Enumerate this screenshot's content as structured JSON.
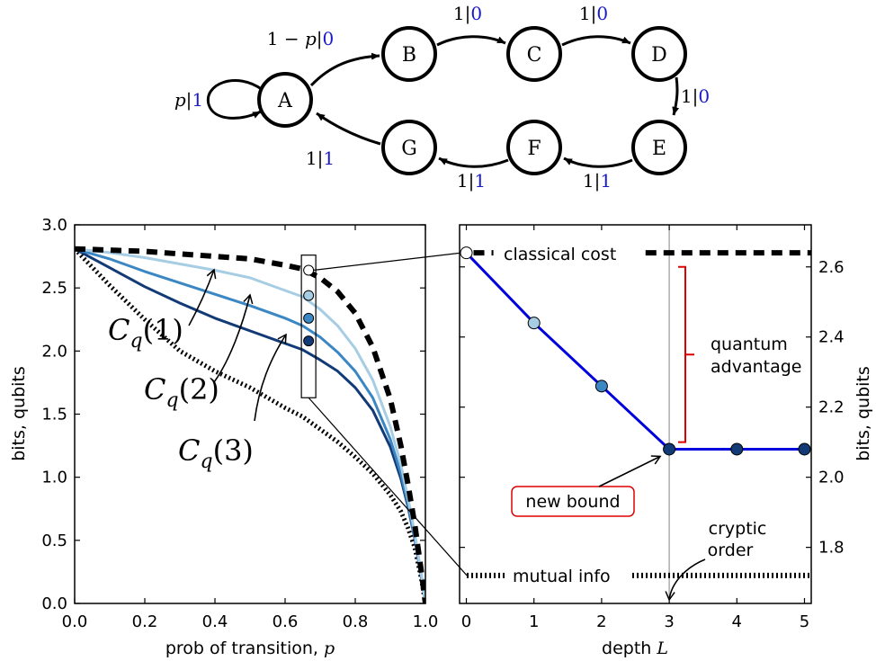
{
  "diagram": {
    "states": [
      "A",
      "B",
      "C",
      "D",
      "E",
      "F",
      "G"
    ],
    "transitions": [
      {
        "from": "A",
        "to": "A",
        "prob": "p",
        "out": "1"
      },
      {
        "from": "A",
        "to": "B",
        "prob": "1 − p",
        "out": "0"
      },
      {
        "from": "B",
        "to": "C",
        "prob": "1",
        "out": "0"
      },
      {
        "from": "C",
        "to": "D",
        "prob": "1",
        "out": "0"
      },
      {
        "from": "D",
        "to": "E",
        "prob": "1",
        "out": "0"
      },
      {
        "from": "E",
        "to": "F",
        "prob": "1",
        "out": "1"
      },
      {
        "from": "F",
        "to": "G",
        "prob": "1",
        "out": "1"
      },
      {
        "from": "G",
        "to": "A",
        "prob": "1",
        "out": "1"
      }
    ],
    "prob_color": "#000000",
    "output_color": "#1a1acc"
  },
  "chart_data": [
    {
      "type": "line",
      "xlabel_text": "prob of transition, ",
      "xlabel_var": "p",
      "ylabel": "bits, qubits",
      "xlim": [
        0,
        1
      ],
      "ylim": [
        0,
        3
      ],
      "xticks": [
        "0.0",
        "0.2",
        "0.4",
        "0.6",
        "0.8",
        "1.0"
      ],
      "yticks": [
        "0.0",
        "0.5",
        "1.0",
        "1.5",
        "2.0",
        "2.5",
        "3.0"
      ],
      "x": [
        0,
        0.1,
        0.2,
        0.3,
        0.4,
        0.5,
        0.6,
        0.65,
        0.7,
        0.75,
        0.8,
        0.85,
        0.9,
        0.93,
        0.95,
        0.97,
        0.99,
        1.0
      ],
      "series": [
        {
          "key": "classical",
          "style": "dashed",
          "color": "#000000",
          "values": [
            2.81,
            2.8,
            2.79,
            2.77,
            2.75,
            2.73,
            2.68,
            2.65,
            2.58,
            2.47,
            2.3,
            2.03,
            1.62,
            1.25,
            0.95,
            0.62,
            0.22,
            0.0
          ]
        },
        {
          "key": "cq1",
          "style": "solid",
          "color": "#a6cde4",
          "values": [
            2.81,
            2.78,
            2.74,
            2.69,
            2.64,
            2.58,
            2.48,
            2.43,
            2.33,
            2.2,
            2.02,
            1.77,
            1.4,
            1.1,
            0.84,
            0.55,
            0.2,
            0.0
          ]
        },
        {
          "key": "cq2",
          "style": "solid",
          "color": "#3b87c4",
          "values": [
            2.81,
            2.73,
            2.63,
            2.54,
            2.45,
            2.36,
            2.26,
            2.2,
            2.11,
            1.99,
            1.84,
            1.63,
            1.3,
            1.03,
            0.79,
            0.52,
            0.19,
            0.0
          ]
        },
        {
          "key": "cq3",
          "style": "solid",
          "color": "#123a76",
          "values": [
            2.81,
            2.66,
            2.51,
            2.38,
            2.26,
            2.16,
            2.06,
            2.01,
            1.93,
            1.84,
            1.71,
            1.53,
            1.24,
            0.99,
            0.77,
            0.51,
            0.18,
            0.0
          ]
        },
        {
          "key": "mutual",
          "style": "dotted",
          "color": "#000000",
          "values": [
            2.81,
            2.52,
            2.25,
            2.0,
            1.84,
            1.71,
            1.55,
            1.48,
            1.38,
            1.28,
            1.16,
            1.03,
            0.86,
            0.73,
            0.6,
            0.44,
            0.17,
            0.0
          ]
        }
      ],
      "highlight_p": 0.667,
      "highlight_points": [
        {
          "y": 2.64,
          "color": "#ffffff"
        },
        {
          "y": 2.44,
          "color": "#a6cde4"
        },
        {
          "y": 2.26,
          "color": "#3b87c4"
        },
        {
          "y": 2.08,
          "color": "#123a76"
        }
      ],
      "annotations": [
        {
          "base": "C",
          "sub": "q",
          "arg": "(1)"
        },
        {
          "base": "C",
          "sub": "q",
          "arg": "(2)"
        },
        {
          "base": "C",
          "sub": "q",
          "arg": "(3)"
        }
      ]
    },
    {
      "type": "line",
      "xlabel_text": "depth ",
      "xlabel_var": "L",
      "ylabel": "bits, qubits",
      "xlim": [
        -0.1,
        5.1
      ],
      "ylim": [
        1.64,
        2.72
      ],
      "xticks": [
        "0",
        "1",
        "2",
        "3",
        "4",
        "5"
      ],
      "yticks": [
        "1.8",
        "2.0",
        "2.2",
        "2.4",
        "2.6"
      ],
      "depth": [
        0,
        1,
        2,
        3,
        4,
        5
      ],
      "values": [
        2.64,
        2.44,
        2.26,
        2.08,
        2.08,
        2.08
      ],
      "point_colors": [
        "#ffffff",
        "#a6cde4",
        "#3b87c4",
        "#123a76",
        "#123a76",
        "#123a76"
      ],
      "line_color": "#0000dd",
      "classical_cost": 2.64,
      "mutual_info": 1.72,
      "cryptic_order": 3,
      "labels": {
        "classical": "classical cost",
        "mutual": "mutual info",
        "quantum": [
          "quantum",
          "advantage"
        ],
        "new_bound": "new bound",
        "cryptic": [
          "cryptic",
          "order"
        ]
      },
      "bracket_color": "#dd0000"
    }
  ]
}
